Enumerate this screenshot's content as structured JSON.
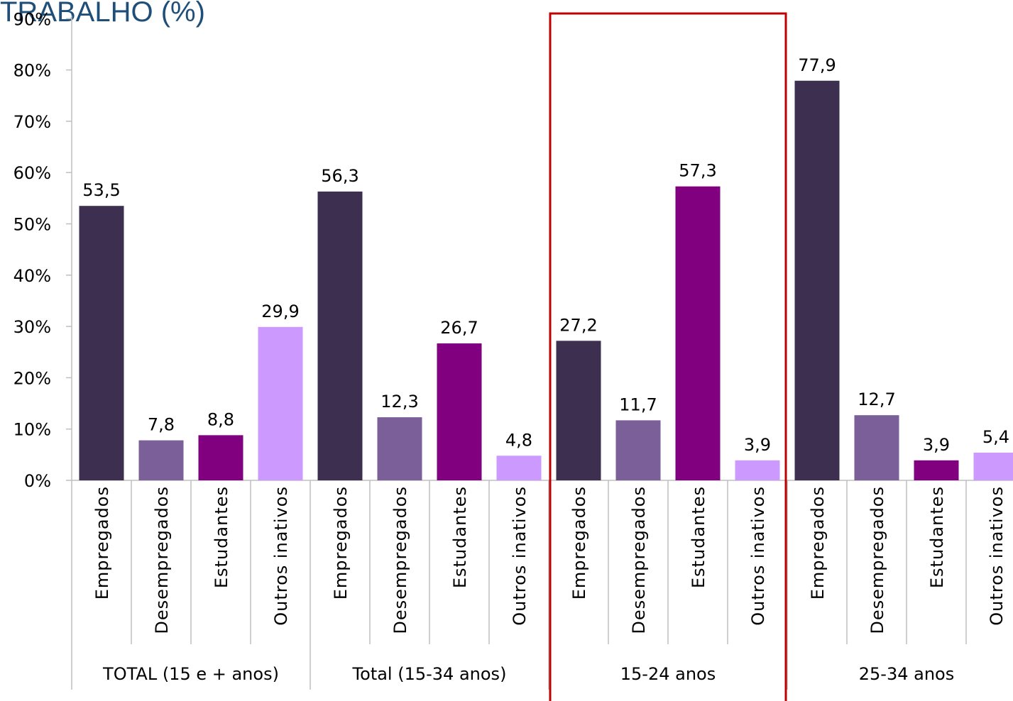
{
  "chart_data": {
    "type": "bar",
    "title": "TRABALHO (%)",
    "xlabel": "",
    "ylabel": "",
    "ylim": [
      0,
      90
    ],
    "yticks": [
      "0%",
      "10%",
      "20%",
      "30%",
      "40%",
      "50%",
      "60%",
      "70%",
      "80%",
      "90%"
    ],
    "groups": [
      {
        "label": "TOTAL (15 e + anos)",
        "bars": [
          {
            "category": "Empregados",
            "value": 53.5,
            "label": "53,5"
          },
          {
            "category": "Desempregados",
            "value": 7.8,
            "label": "7,8"
          },
          {
            "category": "Estudantes",
            "value": 8.8,
            "label": "8,8"
          },
          {
            "category": "Outros inativos",
            "value": 29.9,
            "label": "29,9"
          }
        ]
      },
      {
        "label": "Total (15-34 anos)",
        "bars": [
          {
            "category": "Empregados",
            "value": 56.3,
            "label": "56,3"
          },
          {
            "category": "Desempregados",
            "value": 12.3,
            "label": "12,3"
          },
          {
            "category": "Estudantes",
            "value": 26.7,
            "label": "26,7"
          },
          {
            "category": "Outros inativos",
            "value": 4.8,
            "label": "4,8"
          }
        ]
      },
      {
        "label": "15-24 anos",
        "highlighted": true,
        "bars": [
          {
            "category": "Empregados",
            "value": 27.2,
            "label": "27,2"
          },
          {
            "category": "Desempregados",
            "value": 11.7,
            "label": "11,7"
          },
          {
            "category": "Estudantes",
            "value": 57.3,
            "label": "57,3"
          },
          {
            "category": "Outros inativos",
            "value": 3.9,
            "label": "3,9"
          }
        ]
      },
      {
        "label": "25-34 anos",
        "bars": [
          {
            "category": "Empregados",
            "value": 77.9,
            "label": "77,9"
          },
          {
            "category": "Desempregados",
            "value": 12.7,
            "label": "12,7"
          },
          {
            "category": "Estudantes",
            "value": 3.9,
            "label": "3,9"
          },
          {
            "category": "Outros inativos",
            "value": 5.4,
            "label": "5,4"
          }
        ]
      }
    ],
    "colors": {
      "Empregados": "#3d2f4f",
      "Desempregados": "#7a5f99",
      "Estudantes": "#800080",
      "Outros inativos": "#cc99ff",
      "highlight_border": "#c00000",
      "title": "#1f4e79"
    },
    "grid": false,
    "legend": "none"
  }
}
